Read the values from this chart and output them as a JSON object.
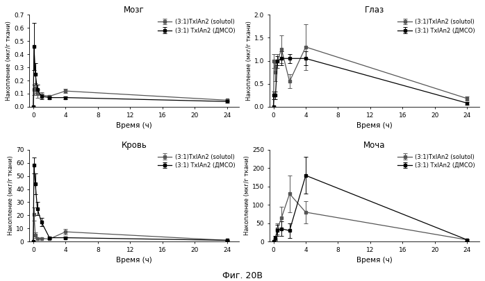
{
  "figure_title": "Фиг. 20В",
  "panels": [
    {
      "title": "Мозг",
      "ylabel": "Накопление (мкг/г ткани)",
      "xlabel": "Время (ч)",
      "ylim": [
        0,
        0.7
      ],
      "yticks": [
        0.0,
        0.1,
        0.2,
        0.3,
        0.4,
        0.5,
        0.6,
        0.7
      ],
      "xticks": [
        0,
        4,
        8,
        12,
        16,
        20,
        24
      ],
      "series": [
        {
          "label": "(3:1)TxlAn2 (solutol)",
          "color": "#555555",
          "x": [
            0,
            0.083,
            0.25,
            0.5,
            1,
            2,
            4,
            24
          ],
          "y": [
            0.0,
            0.13,
            0.14,
            0.1,
            0.09,
            0.08,
            0.12,
            0.05
          ],
          "yerr": [
            0.0,
            0.04,
            0.04,
            0.03,
            0.02,
            0.01,
            0.015,
            0.008
          ]
        },
        {
          "label": "(3:1) TxlAn2 (ДМСО)",
          "color": "#000000",
          "x": [
            0,
            0.083,
            0.25,
            0.5,
            1,
            2,
            4,
            24
          ],
          "y": [
            0.0,
            0.46,
            0.25,
            0.13,
            0.08,
            0.07,
            0.07,
            0.04
          ],
          "yerr": [
            0.0,
            0.18,
            0.08,
            0.04,
            0.02,
            0.01,
            0.01,
            0.008
          ]
        }
      ]
    },
    {
      "title": "Глаз",
      "ylabel": "Накопление (мкг/г ткани)",
      "xlabel": "Время (ч)",
      "ylim": [
        0,
        2.0
      ],
      "yticks": [
        0.0,
        0.5,
        1.0,
        1.5,
        2.0
      ],
      "xticks": [
        0,
        4,
        8,
        12,
        16,
        20,
        24
      ],
      "series": [
        {
          "label": "(3:1)TxlAn2 (solutol)",
          "color": "#555555",
          "x": [
            0,
            0.083,
            0.25,
            0.5,
            1,
            2,
            4,
            24
          ],
          "y": [
            0.0,
            1.0,
            0.75,
            1.0,
            1.25,
            0.55,
            1.3,
            0.18
          ],
          "yerr": [
            0.0,
            0.15,
            0.2,
            0.15,
            0.3,
            0.15,
            0.5,
            0.05
          ]
        },
        {
          "label": "(3:1) TxlAn2 (ДМСО)",
          "color": "#000000",
          "x": [
            0,
            0.083,
            0.25,
            0.5,
            1,
            2,
            4,
            24
          ],
          "y": [
            0.0,
            0.25,
            0.25,
            1.0,
            1.05,
            1.05,
            1.05,
            0.08
          ],
          "yerr": [
            0.0,
            0.08,
            0.08,
            0.1,
            0.15,
            0.1,
            0.15,
            0.03
          ]
        }
      ]
    },
    {
      "title": "Кровь",
      "ylabel": "Накопление (мкг/г ткани)",
      "xlabel": "Время (ч)",
      "ylim": [
        0,
        70
      ],
      "yticks": [
        0,
        10,
        20,
        30,
        40,
        50,
        60,
        70
      ],
      "xticks": [
        0,
        4,
        8,
        12,
        16,
        20,
        24
      ],
      "series": [
        {
          "label": "(3:1)TxlAn2 (solutol)",
          "color": "#555555",
          "x": [
            0,
            0.083,
            0.25,
            0.5,
            1,
            2,
            4,
            24
          ],
          "y": [
            0.0,
            21.0,
            5.0,
            2.5,
            2.5,
            2.0,
            7.5,
            1.0
          ],
          "yerr": [
            0.0,
            5.0,
            2.0,
            0.5,
            0.5,
            0.5,
            2.0,
            0.3
          ]
        },
        {
          "label": "(3:1) TxlAn2 (ДМСО)",
          "color": "#000000",
          "x": [
            0,
            0.083,
            0.25,
            0.5,
            1,
            2,
            4,
            24
          ],
          "y": [
            0.0,
            58.0,
            44.0,
            25.0,
            15.0,
            3.0,
            3.0,
            1.0
          ],
          "yerr": [
            0.0,
            6.0,
            8.0,
            5.0,
            3.0,
            1.0,
            0.8,
            0.3
          ]
        }
      ]
    },
    {
      "title": "Моча",
      "ylabel": "Накопление (мкг/г ткани)",
      "xlabel": "Время (ч)",
      "ylim": [
        0,
        250
      ],
      "yticks": [
        0,
        50,
        100,
        150,
        200,
        250
      ],
      "xticks": [
        0,
        4,
        8,
        12,
        16,
        20,
        24
      ],
      "series": [
        {
          "label": "(3:1)TxlAn2 (solutol)",
          "color": "#555555",
          "x": [
            0,
            0.25,
            0.5,
            1,
            2,
            4,
            24
          ],
          "y": [
            0.0,
            5.0,
            35.0,
            65.0,
            130.0,
            80.0,
            5.0
          ],
          "yerr": [
            0.0,
            3.0,
            15.0,
            30.0,
            50.0,
            30.0,
            2.0
          ]
        },
        {
          "label": "(3:1) TxlAn2 (ДМСО)",
          "color": "#000000",
          "x": [
            0,
            0.25,
            0.5,
            1,
            2,
            4,
            24
          ],
          "y": [
            0.0,
            10.0,
            30.0,
            35.0,
            30.0,
            180.0,
            5.0
          ],
          "yerr": [
            0.0,
            5.0,
            15.0,
            20.0,
            20.0,
            50.0,
            2.0
          ]
        }
      ]
    }
  ]
}
